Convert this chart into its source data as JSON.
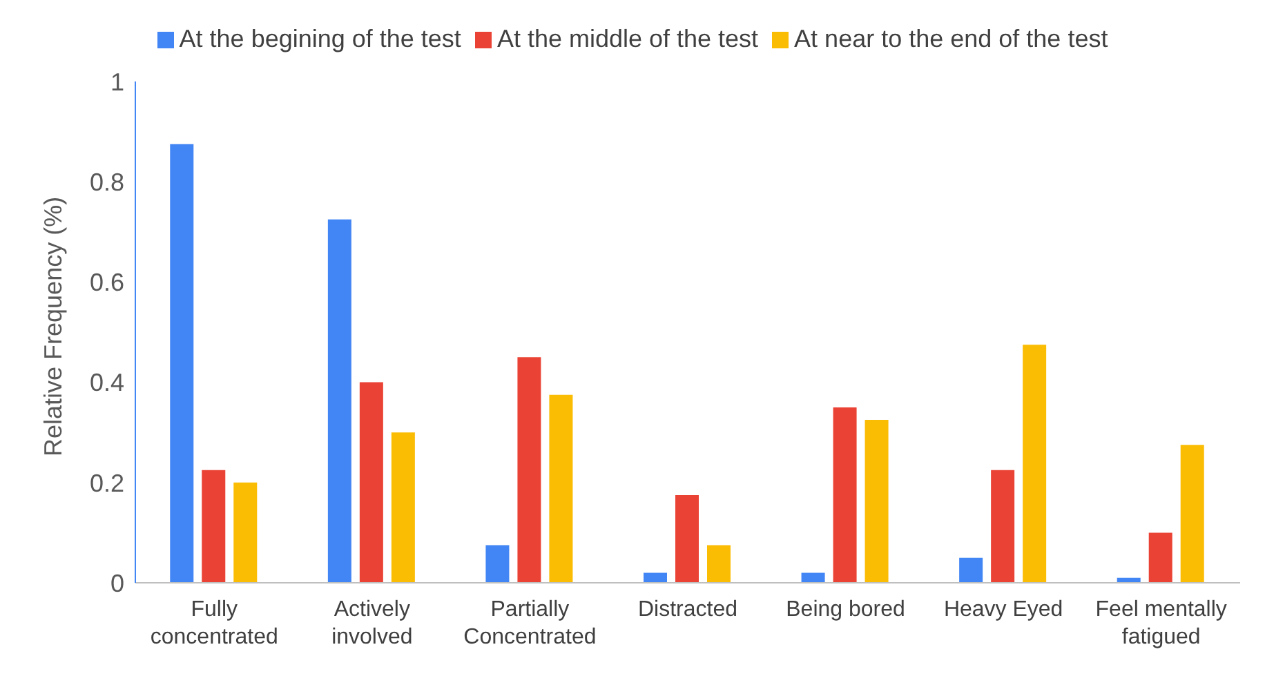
{
  "chart_data": {
    "type": "bar",
    "ylabel": "Relative Frequency (%)",
    "categories": [
      "Fully concentrated",
      "Actively involved",
      "Partially Concentrated",
      "Distracted",
      "Being bored",
      "Heavy Eyed",
      "Feel mentally fatigued"
    ],
    "series": [
      {
        "name": "At the begining of the test",
        "color": "#4285f4",
        "values": [
          0.875,
          0.725,
          0.075,
          0.02,
          0.02,
          0.05,
          0.01
        ]
      },
      {
        "name": "At the middle of the test",
        "color": "#ea4335",
        "values": [
          0.225,
          0.4,
          0.45,
          0.175,
          0.35,
          0.225,
          0.1
        ]
      },
      {
        "name": "At near to the end of the test",
        "color": "#fbbc04",
        "values": [
          0.2,
          0.3,
          0.375,
          0.075,
          0.325,
          0.475,
          0.275
        ]
      }
    ],
    "ylim": [
      0,
      1
    ],
    "yticks": [
      0,
      0.2,
      0.4,
      0.6,
      0.8,
      1
    ],
    "grid": false,
    "legend": "top"
  }
}
